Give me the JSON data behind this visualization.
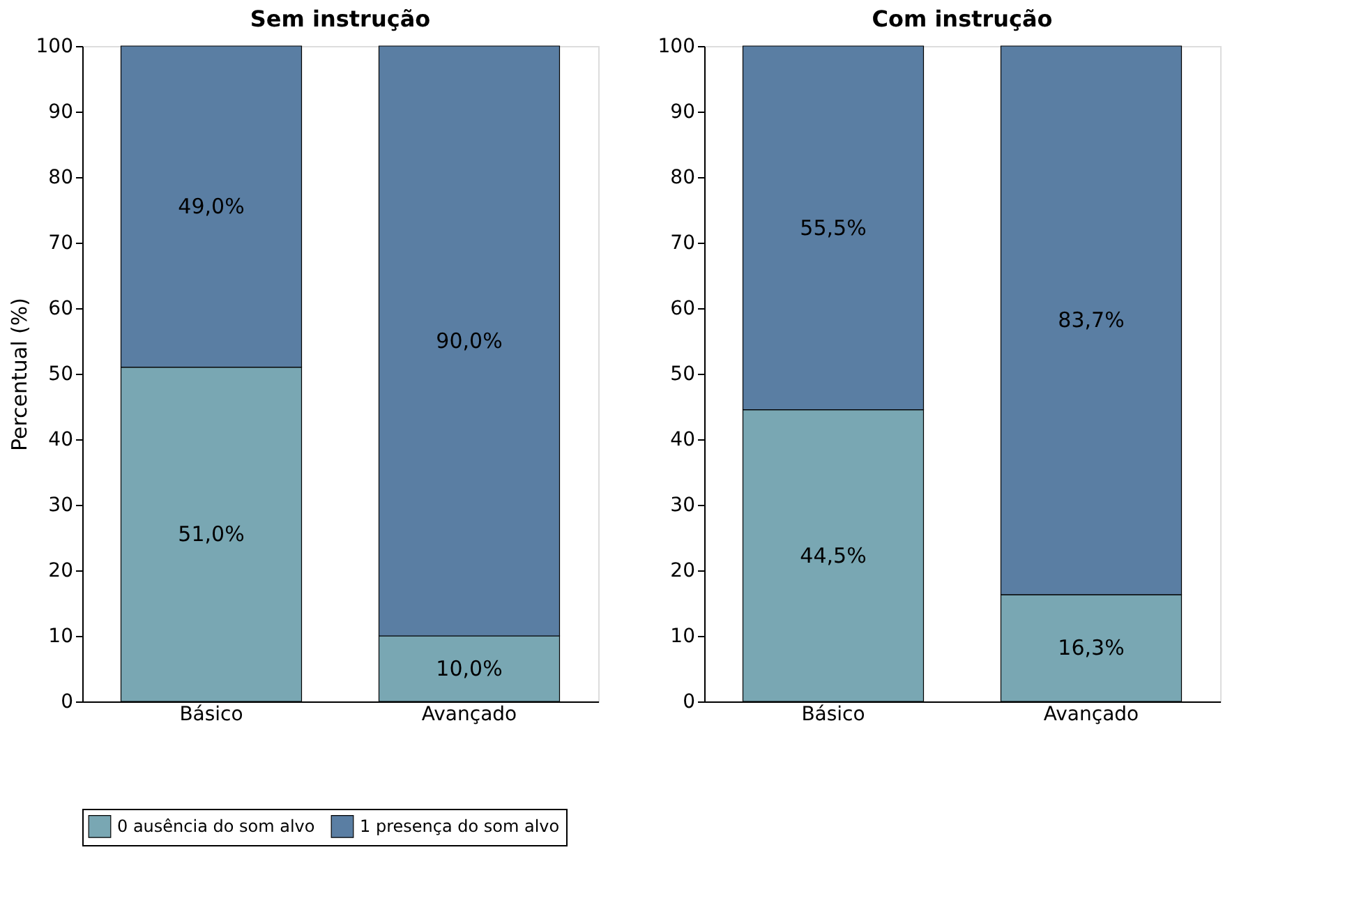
{
  "chart_data": [
    {
      "type": "bar",
      "stacked": true,
      "title": "Sem instrução",
      "ylabel": "Percentual (%)",
      "categories": [
        "Básico",
        "Avançado"
      ],
      "ylim": [
        0,
        100
      ],
      "yticks": [
        0,
        10,
        20,
        30,
        40,
        50,
        60,
        70,
        80,
        90,
        100
      ],
      "grid": false,
      "legend": "bottom",
      "series": [
        {
          "name": "0 ausência do som alvo",
          "color": "#79a7b3",
          "values": [
            51.0,
            10.0
          ],
          "value_labels": [
            "51,0%",
            "10,0%"
          ]
        },
        {
          "name": "1 presença do som alvo",
          "color": "#5a7ea3",
          "values": [
            49.0,
            90.0
          ],
          "value_labels": [
            "49,0%",
            "90,0%"
          ]
        }
      ]
    },
    {
      "type": "bar",
      "stacked": true,
      "title": "Com instrução",
      "categories": [
        "Básico",
        "Avançado"
      ],
      "ylim": [
        0,
        100
      ],
      "yticks": [
        0,
        10,
        20,
        30,
        40,
        50,
        60,
        70,
        80,
        90,
        100
      ],
      "grid": false,
      "legend": "bottom",
      "series": [
        {
          "name": "0 ausência do som alvo",
          "color": "#79a7b3",
          "values": [
            44.5,
            16.3
          ],
          "value_labels": [
            "44,5%",
            "16,3%"
          ]
        },
        {
          "name": "1 presença do som alvo",
          "color": "#5a7ea3",
          "values": [
            55.5,
            83.7
          ],
          "value_labels": [
            "55,5%",
            "83,7%"
          ]
        }
      ]
    }
  ]
}
